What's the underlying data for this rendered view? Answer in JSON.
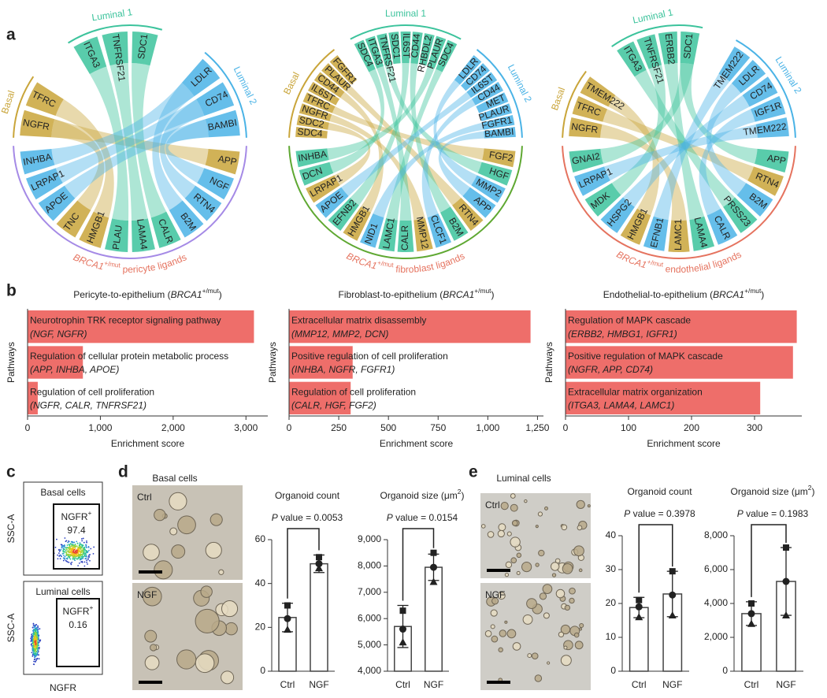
{
  "panel_labels": [
    "a",
    "b",
    "c",
    "d",
    "e"
  ],
  "chord_diagrams": [
    {
      "groups": [
        {
          "name": "Basal",
          "color": "#c9a53a",
          "genes": [
            "NGFR",
            "TFRC"
          ]
        },
        {
          "name": "Luminal 1",
          "color": "#3cc39c",
          "genes": [
            "ITGA3",
            "TNFRSF21",
            "SDC1"
          ]
        },
        {
          "name": "Luminal 2",
          "color": "#4ab3e6",
          "genes": [
            "LDLR",
            "CD74",
            "BAMBI"
          ]
        }
      ],
      "ligand_color": "#a58ae6",
      "caption": [
        {
          "text": "BRCA1",
          "italic": true
        },
        {
          "text": "+/mut",
          "sup": true
        },
        {
          "text": " pericyte ligands"
        }
      ],
      "ligands": [
        "APP",
        "NGF",
        "RTN4",
        "B2M",
        "CALR",
        "LAMA4",
        "PLAU",
        "HMGB1",
        "TNC",
        "APOE",
        "LRPAP1",
        "INHBA"
      ]
    },
    {
      "groups": [
        {
          "name": "Basal",
          "color": "#c9a53a",
          "genes": [
            "SDC4",
            "SDC2",
            "NGFR",
            "TFRC",
            "IL6ST",
            "CD44",
            "PLAUR",
            "FGFR1"
          ]
        },
        {
          "name": "Luminal 1",
          "color": "#3cc39c",
          "genes": [
            "SDC4",
            "ITGA3",
            "TNFRSF21",
            "SDC1",
            "IL6ST",
            "CD44",
            "RHBDL2",
            "PLAUR",
            "SDC4"
          ]
        },
        {
          "name": "Luminal 2",
          "color": "#4ab3e6",
          "genes": [
            "LDLR",
            "CD74",
            "IL6ST",
            "CD44",
            "MET",
            "PLAUR",
            "FGFR1",
            "BAMBI"
          ]
        }
      ],
      "ligand_color": "#5fa832",
      "caption": [
        {
          "text": "BRCA1",
          "italic": true
        },
        {
          "text": "+/mut",
          "sup": true
        },
        {
          "text": " fibroblast ligands"
        }
      ],
      "ligands": [
        "FGF2",
        "HGF",
        "MMP2",
        "APP",
        "RTN4",
        "B2M",
        "CLCF1",
        "MMP12",
        "CALR",
        "LAMC1",
        "NID1",
        "HMGB1",
        "EFNB2",
        "APOE",
        "LRPAP1",
        "DCN",
        "INHBA"
      ]
    },
    {
      "groups": [
        {
          "name": "Basal",
          "color": "#c9a53a",
          "genes": [
            "NGFR",
            "TFRC",
            "TMEM222"
          ]
        },
        {
          "name": "Luminal 1",
          "color": "#3cc39c",
          "genes": [
            "ITGA3",
            "TNFRSF21",
            "ERBB2",
            "SDC1"
          ]
        },
        {
          "name": "Luminal 2",
          "color": "#4ab3e6",
          "genes": [
            "TMEM222",
            "LDLR",
            "CD74",
            "IGF1R",
            "TMEM222"
          ]
        }
      ],
      "ligand_color": "#e5735f",
      "caption": [
        {
          "text": "BRCA1",
          "italic": true
        },
        {
          "text": "+/mut",
          "sup": true
        },
        {
          "text": " endothelial ligands"
        }
      ],
      "ligands": [
        "APP",
        "RTN4",
        "B2M",
        "PRSS23",
        "CALR",
        "LAMA4",
        "LAMC1",
        "EFNB1",
        "HMGB1",
        "HSPG2",
        "MDK",
        "LRPAP1",
        "GNAI2"
      ]
    }
  ],
  "flow_cytometry": {
    "plots": [
      {
        "title": "Basal cells",
        "gate_label": [
          {
            "text": "NGFR"
          },
          {
            "text": "+",
            "sup": true
          }
        ],
        "gate_value": "97.4",
        "ylabel": "SSC-A"
      },
      {
        "title": "Luminal cells",
        "gate_label": [
          {
            "text": "NGFR"
          },
          {
            "text": "+",
            "sup": true
          }
        ],
        "gate_value": "0.16",
        "ylabel": "SSC-A"
      }
    ],
    "xlabel": "NGFR"
  },
  "micrographs": [
    {
      "title": "Basal cells",
      "conditions": [
        "Ctrl",
        "NGF"
      ]
    },
    {
      "title": "Luminal cells",
      "conditions": [
        "Ctrl",
        "NGF"
      ]
    }
  ],
  "chart_data": [
    {
      "type": "barh",
      "title": [
        {
          "text": "Pericyte-to-epithelium ("
        },
        {
          "text": "BRCA1",
          "italic": true
        },
        {
          "text": "+/mut",
          "sup": true
        },
        {
          "text": ")"
        }
      ],
      "categories": [
        "Neurotrophin TRK receptor signaling pathway",
        "Regulation of cellular protein metabolic process",
        "Regulation of cell proliferation"
      ],
      "genes": [
        "(NGF, NGFR)",
        "(APP, INHBA, APOE)",
        "(NGFR, CALR, TNFRSF21)"
      ],
      "values": [
        3110,
        760,
        140
      ],
      "color": "#ee6e6a",
      "xlim": [
        0,
        3300
      ],
      "xticks": [
        0,
        {
          "value": 1000,
          "label": "1,000"
        },
        {
          "value": 2000,
          "label": "2,000"
        },
        {
          "value": 3000,
          "label": "3,000"
        }
      ],
      "xlabel": "Enrichment score",
      "ylabel": "Pathways"
    },
    {
      "type": "barh",
      "title": [
        {
          "text": "Fibroblast-to-epithelium ("
        },
        {
          "text": "BRCA1",
          "italic": true
        },
        {
          "text": "+/mut",
          "sup": true
        },
        {
          "text": ")"
        }
      ],
      "categories": [
        "Extracellular matrix disassembly",
        "Positive regulation of cell proliferation",
        "Regulation of cell proliferation"
      ],
      "genes": [
        "(MMP12, MMP2, DCN)",
        "(INHBA, NGFR, FGFR1)",
        "(CALR, HGF, FGF2)"
      ],
      "values": [
        1215,
        320,
        310
      ],
      "color": "#ee6e6a",
      "xlim": [
        0,
        1280
      ],
      "xticks": [
        0,
        250,
        500,
        750,
        {
          "value": 1000,
          "label": "1,000"
        },
        {
          "value": 1250,
          "label": "1,250"
        }
      ],
      "xlabel": "Enrichment score",
      "ylabel": "Pathways"
    },
    {
      "type": "barh",
      "title": [
        {
          "text": "Endothelial-to-epithelium ("
        },
        {
          "text": "BRCA1",
          "italic": true
        },
        {
          "text": "+/mut",
          "sup": true
        },
        {
          "text": ")"
        }
      ],
      "categories": [
        "Regulation of MAPK cascade",
        "Positive regulation of MAPK cascade",
        "Extracellular matrix organization"
      ],
      "genes": [
        "(ERBB2, HMBG1, IGFR1)",
        "(NGFR, APP, CD74)",
        "(ITGA3, LAMA4, LAMC1)"
      ],
      "values": [
        367,
        361,
        309
      ],
      "color": "#ee6e6a",
      "xlim": [
        0,
        375
      ],
      "xticks": [
        0,
        100,
        200,
        300
      ],
      "xlabel": "Enrichment score",
      "ylabel": "Pathways"
    },
    {
      "type": "bar",
      "title": [
        {
          "text": "Organoid count"
        }
      ],
      "p_value": [
        {
          "text": "P",
          "italic": true
        },
        {
          "text": " value = 0.0053"
        }
      ],
      "categories": [
        "Ctrl",
        "NGF"
      ],
      "values": [
        24.5,
        49
      ],
      "errors": [
        6.5,
        4
      ],
      "points": [
        [
          30,
          24,
          19
        ],
        [
          52,
          49,
          47
        ]
      ],
      "ylim": [
        0,
        60
      ],
      "yticks": [
        0,
        20,
        40,
        60
      ]
    },
    {
      "type": "bar",
      "title": [
        {
          "text": "Organoid size (μm"
        },
        {
          "text": "2",
          "sup": true
        },
        {
          "text": ")"
        }
      ],
      "p_value": [
        {
          "text": "P",
          "italic": true
        },
        {
          "text": " value = 0.0154"
        }
      ],
      "categories": [
        "Ctrl",
        "NGF"
      ],
      "values": [
        5700,
        7950
      ],
      "errors": [
        800,
        500
      ],
      "points": [
        [
          6300,
          5600,
          5100
        ],
        [
          8500,
          7950,
          7400
        ]
      ],
      "ylim": [
        4000,
        9000
      ],
      "yticks": [
        {
          "value": 4000,
          "label": "4,000"
        },
        {
          "value": 5000,
          "label": "5,000"
        },
        {
          "value": 6000,
          "label": "6,000"
        },
        {
          "value": 7000,
          "label": "7,000"
        },
        {
          "value": 8000,
          "label": "8,000"
        },
        {
          "value": 9000,
          "label": "9,000"
        }
      ]
    },
    {
      "type": "bar",
      "title": [
        {
          "text": "Organoid count"
        }
      ],
      "p_value": [
        {
          "text": "P",
          "italic": true
        },
        {
          "text": " value = 0.3978"
        }
      ],
      "categories": [
        "Ctrl",
        "NGF"
      ],
      "values": [
        18.8,
        22.8
      ],
      "errors": [
        3,
        6.7
      ],
      "points": [
        [
          21,
          19,
          16
        ],
        [
          29.5,
          22.5,
          16.5
        ]
      ],
      "ylim": [
        0,
        40
      ],
      "yticks": [
        0,
        10,
        20,
        30,
        40
      ]
    },
    {
      "type": "bar",
      "title": [
        {
          "text": "Organoid size (μm"
        },
        {
          "text": "2",
          "sup": true
        },
        {
          "text": ")"
        }
      ],
      "p_value": [
        {
          "text": "P",
          "italic": true
        },
        {
          "text": " value = 0.1983"
        }
      ],
      "categories": [
        "Ctrl",
        "NGF"
      ],
      "values": [
        3400,
        5300
      ],
      "errors": [
        700,
        2000
      ],
      "points": [
        [
          4000,
          3400,
          2800
        ],
        [
          7300,
          5300,
          3300
        ]
      ],
      "ylim": [
        0,
        8000
      ],
      "yticks": [
        0,
        {
          "value": 2000,
          "label": "2,000"
        },
        {
          "value": 4000,
          "label": "4,000"
        },
        {
          "value": 6000,
          "label": "6,000"
        },
        {
          "value": 8000,
          "label": "8,000"
        }
      ]
    }
  ]
}
